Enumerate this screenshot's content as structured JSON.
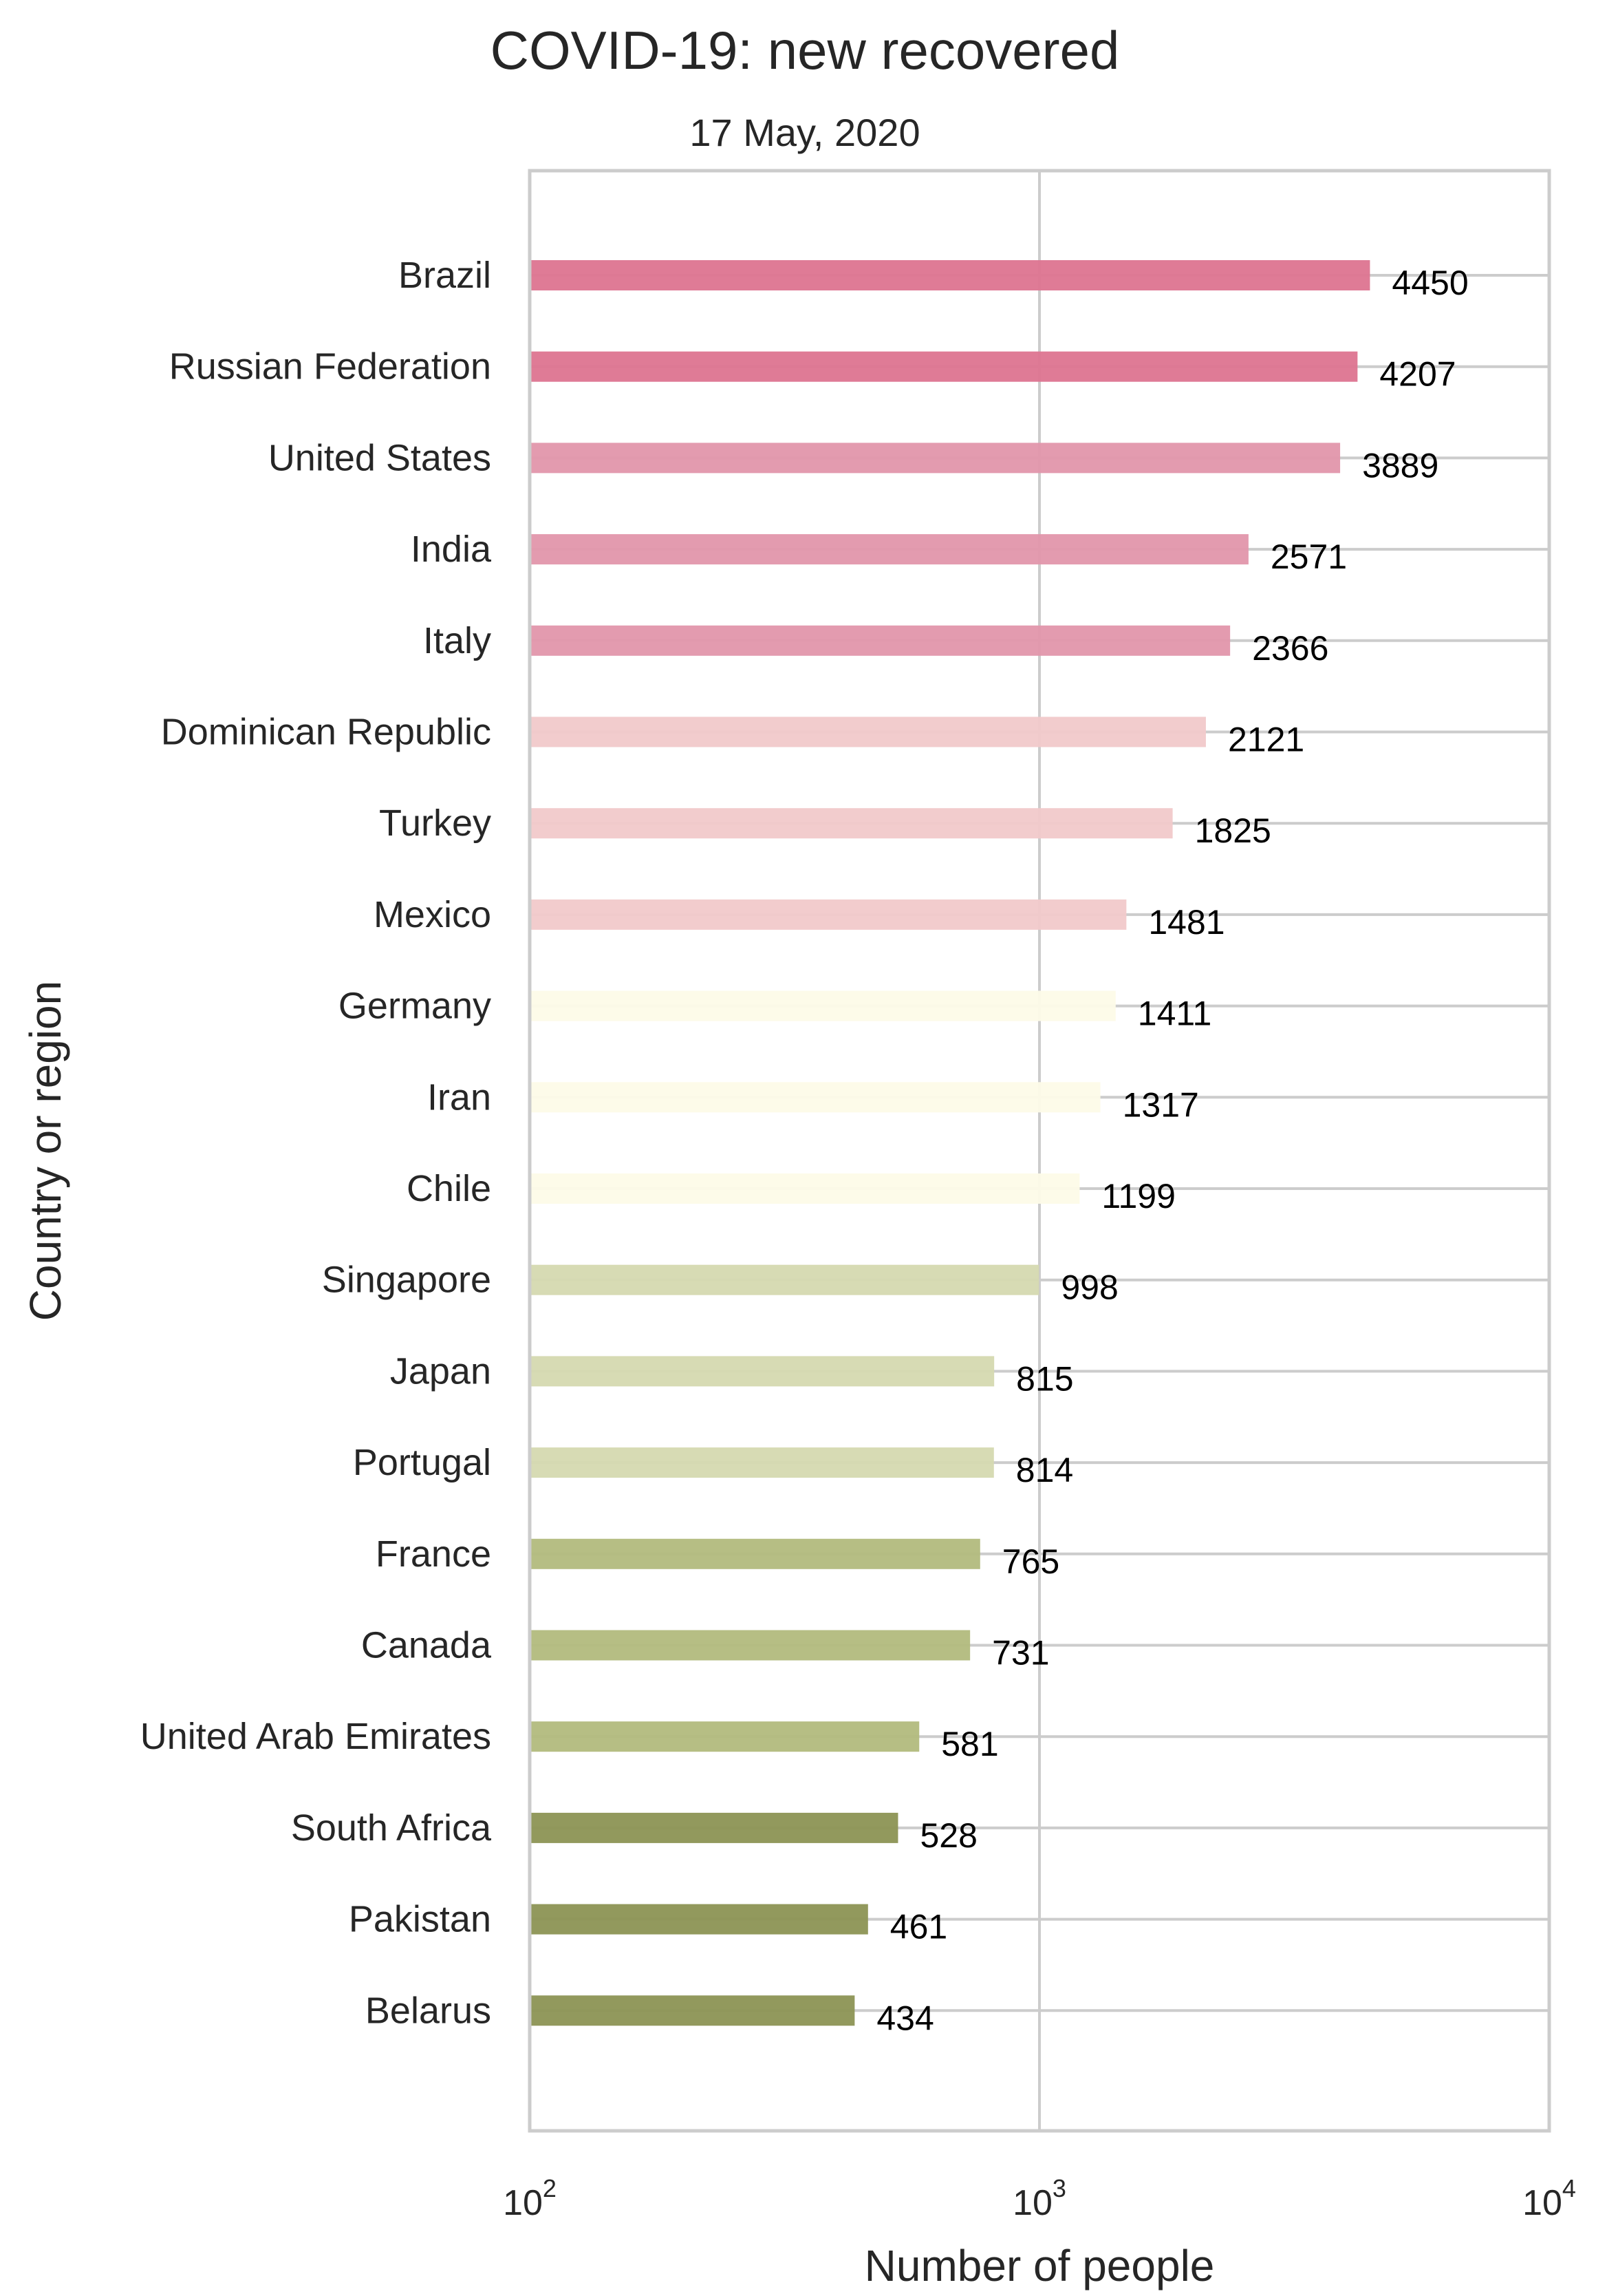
{
  "chart_data": {
    "type": "bar",
    "orientation": "horizontal",
    "title": "COVID-19:  new recovered",
    "subtitle": "17 May, 2020",
    "xlabel": "Number of people",
    "ylabel": "Country or region",
    "xscale": "log",
    "xlim": [
      100,
      10000
    ],
    "xticks": [
      {
        "base": "10",
        "exp": "2",
        "value": 100
      },
      {
        "base": "10",
        "exp": "3",
        "value": 1000
      },
      {
        "base": "10",
        "exp": "4",
        "value": 10000
      }
    ],
    "grid": true,
    "categories": [
      "Brazil",
      "Russian Federation",
      "United States",
      "India",
      "Italy",
      "Dominican Republic",
      "Turkey",
      "Mexico",
      "Germany",
      "Iran",
      "Chile",
      "Singapore",
      "Japan",
      "Portugal",
      "France",
      "Canada",
      "United Arab Emirates",
      "South Africa",
      "Pakistan",
      "Belarus"
    ],
    "values": [
      4450,
      4207,
      3889,
      2571,
      2366,
      2121,
      1825,
      1481,
      1411,
      1317,
      1199,
      998,
      815,
      814,
      765,
      731,
      581,
      528,
      461,
      434
    ],
    "value_labels": [
      "4450",
      "4207",
      "3889",
      "2571",
      "2366",
      "2121",
      "1825",
      "1481",
      "1411",
      "1317",
      "1199",
      "998",
      "815",
      "814",
      "765",
      "731",
      "581",
      "528",
      "461",
      "434"
    ],
    "colors": [
      "#dd7490",
      "#dd7490",
      "#e196ab",
      "#e196ab",
      "#e196ab",
      "#f1c9ca",
      "#f1c9ca",
      "#f1c9ca",
      "#fdfbe8",
      "#fdfbe8",
      "#fdfbe8",
      "#d5d9b0",
      "#d5d9b0",
      "#d5d9b0",
      "#b2bb7d",
      "#b2bb7d",
      "#b2bb7d",
      "#8c9454",
      "#8c9454",
      "#8c9454"
    ]
  }
}
